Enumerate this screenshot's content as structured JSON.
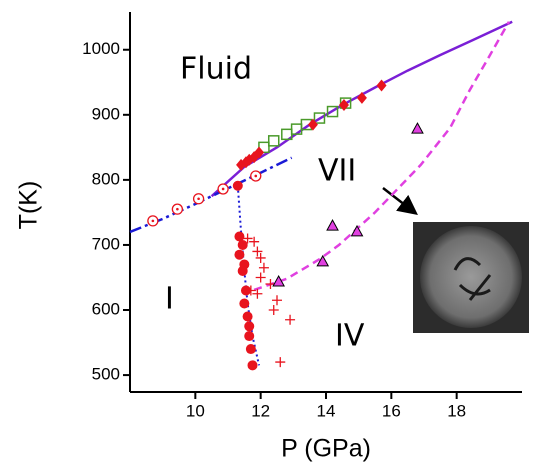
{
  "chart_data": {
    "type": "scatter",
    "xlabel": "P (GPa)",
    "ylabel": "T(K)",
    "xlim": [
      8,
      20
    ],
    "ylim": [
      474,
      1058
    ],
    "xticks": [
      10,
      12,
      14,
      16,
      18
    ],
    "yticks": [
      500,
      600,
      700,
      800,
      900,
      1000
    ],
    "annotations": [
      "Fluid",
      "VII",
      "I",
      "IV"
    ],
    "series": [
      {
        "style": "solid",
        "color": "#7a1fd6",
        "x": [
          10.5,
          11.5,
          12.5,
          13.5,
          14.5,
          15.5,
          16.5,
          17.5,
          18.5,
          19.7
        ],
        "values": [
          775,
          820,
          850,
          885,
          915,
          942,
          968,
          992,
          1015,
          1043
        ]
      },
      {
        "style": "dashdot",
        "color": "#1a1ad6",
        "x": [
          8,
          9,
          10,
          11,
          12,
          12.95
        ],
        "values": [
          720,
          740,
          763,
          787,
          811,
          834
        ]
      },
      {
        "style": "dotted",
        "color": "#1a1ad6",
        "x": [
          11.3,
          11.4,
          11.5,
          11.6,
          11.75,
          11.95
        ],
        "values": [
          791,
          720,
          660,
          610,
          560,
          515
        ]
      },
      {
        "style": "dashed",
        "color": "#e040e0",
        "x": [
          11.8,
          12.8,
          13.8,
          14.4,
          15.5,
          16.9,
          17.8,
          18.4,
          19.0,
          19.6
        ],
        "values": [
          631,
          648,
          678,
          700,
          750,
          823,
          880,
          938,
          990,
          1043
        ]
      },
      {
        "marker": "square",
        "color": "#4a9a2a",
        "x": [
          12.1,
          12.4,
          12.8,
          13.1,
          13.4,
          13.8,
          14.2,
          14.6
        ],
        "values": [
          850,
          860,
          870,
          878,
          885,
          895,
          905,
          918
        ]
      },
      {
        "marker": "diamond",
        "color": "#e8141e",
        "x": [
          11.4,
          11.55,
          11.65,
          11.8,
          11.95,
          13.6,
          14.55,
          15.1,
          15.7
        ],
        "values": [
          823,
          827,
          831,
          835,
          842,
          885,
          915,
          926,
          945
        ]
      },
      {
        "marker": "circle-open",
        "color": "#e8141e",
        "x": [
          8.7,
          9.45,
          10.1,
          10.85,
          11.85
        ],
        "values": [
          737,
          755,
          771,
          786,
          806
        ]
      },
      {
        "marker": "circle",
        "color": "#e8141e",
        "x": [
          11.3,
          11.35,
          11.45,
          11.35,
          11.5,
          11.45,
          11.55,
          11.5,
          11.6,
          11.65,
          11.65,
          11.7,
          11.75
        ],
        "values": [
          791,
          713,
          700,
          685,
          670,
          660,
          630,
          610,
          590,
          575,
          560,
          540,
          515
        ]
      },
      {
        "marker": "plus",
        "color": "#e8141e",
        "x": [
          11.6,
          11.8,
          11.9,
          12.0,
          12.1,
          12.0,
          11.7,
          11.9,
          12.3,
          12.5,
          12.9,
          12.6,
          12.4
        ],
        "values": [
          710,
          705,
          690,
          680,
          665,
          650,
          630,
          625,
          640,
          615,
          585,
          520,
          600
        ]
      },
      {
        "marker": "triangle",
        "color": "#e040e0",
        "x": [
          12.55,
          13.9,
          14.2,
          14.95,
          16.8
        ],
        "values": [
          643,
          674,
          729,
          720,
          878
        ]
      }
    ]
  }
}
